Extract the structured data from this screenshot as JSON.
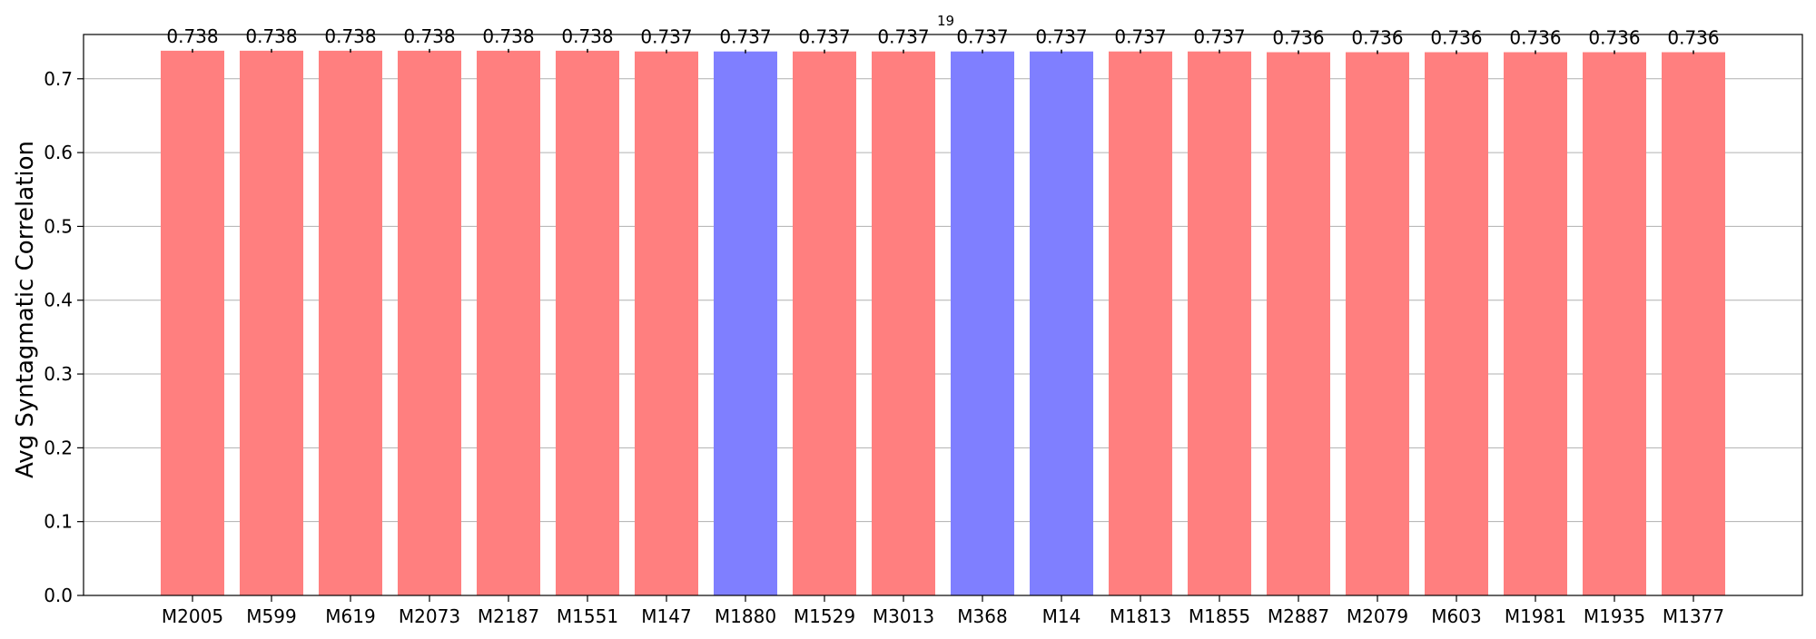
{
  "chart_data": {
    "type": "bar",
    "title": "19",
    "xlabel": "",
    "ylabel": "Avg Syntagmatic Correlation",
    "ylim": [
      0,
      0.76
    ],
    "yticks": [
      "0.0",
      "0.1",
      "0.2",
      "0.3",
      "0.4",
      "0.5",
      "0.6",
      "0.7"
    ],
    "grid": "y",
    "categories": [
      "M2005",
      "M599",
      "M619",
      "M2073",
      "M2187",
      "M1551",
      "M147",
      "M1880",
      "M1529",
      "M3013",
      "M368",
      "M14",
      "M1813",
      "M1855",
      "M2887",
      "M2079",
      "M603",
      "M1981",
      "M1935",
      "M1377"
    ],
    "values": [
      0.738,
      0.738,
      0.738,
      0.738,
      0.738,
      0.738,
      0.737,
      0.737,
      0.737,
      0.737,
      0.737,
      0.737,
      0.737,
      0.737,
      0.736,
      0.736,
      0.736,
      0.736,
      0.736,
      0.736
    ],
    "value_labels": [
      "0.738",
      "0.738",
      "0.738",
      "0.738",
      "0.738",
      "0.738",
      "0.737",
      "0.737",
      "0.737",
      "0.737",
      "0.737",
      "0.737",
      "0.737",
      "0.737",
      "0.736",
      "0.736",
      "0.736",
      "0.736",
      "0.736",
      "0.736"
    ],
    "highlight": [
      false,
      false,
      false,
      false,
      false,
      false,
      false,
      true,
      false,
      false,
      true,
      true,
      false,
      false,
      false,
      false,
      false,
      false,
      false,
      false
    ],
    "colors": {
      "default": "#ff7f7f",
      "highlight": "#7f7fff",
      "grid": "#b0b0b0",
      "axis": "#000000"
    }
  }
}
